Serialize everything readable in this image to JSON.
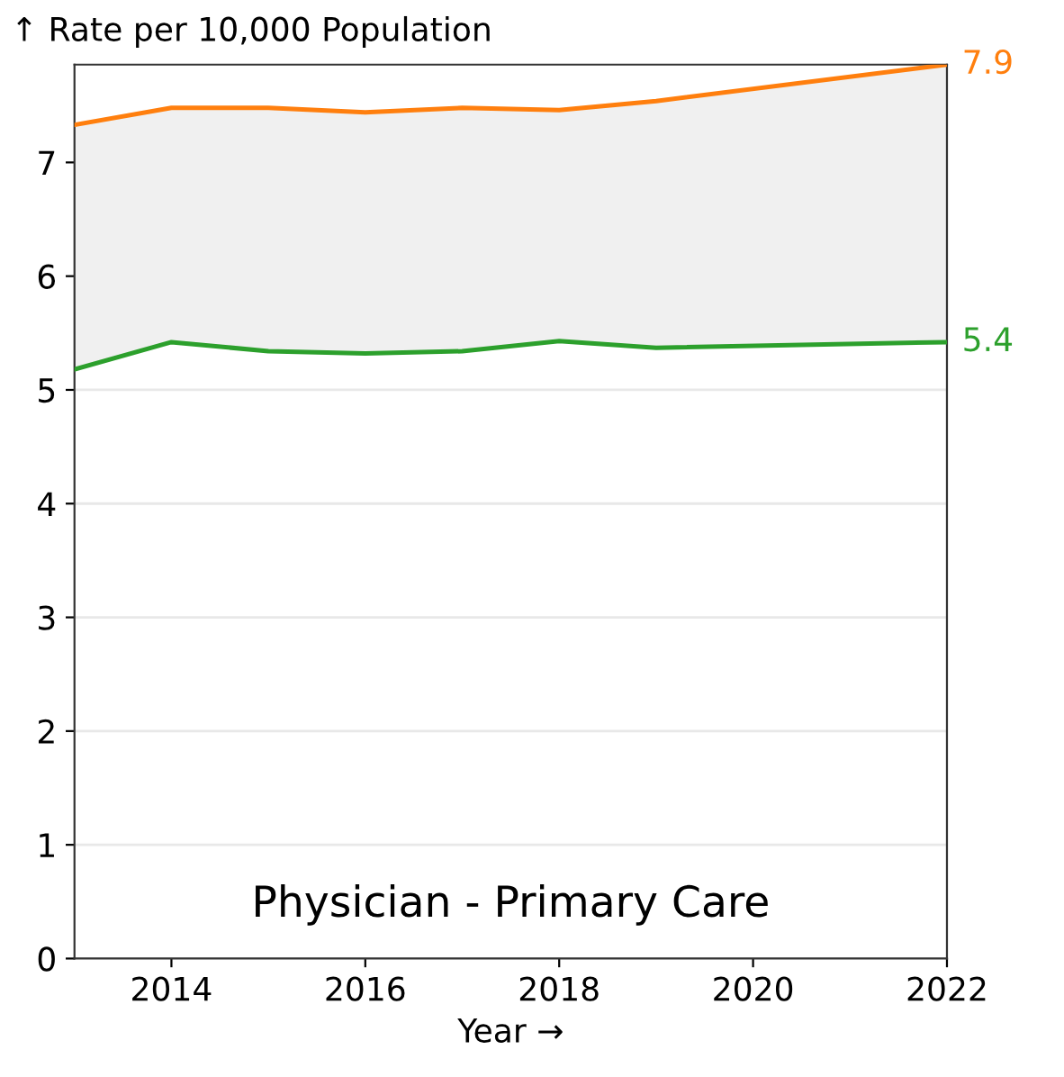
{
  "chart_data": {
    "type": "line",
    "ylabel": "↑ Rate per 10,000 Population",
    "xlabel": "Year →",
    "annotations": [
      "Physician - Primary Care"
    ],
    "x": [
      2013,
      2014,
      2015,
      2016,
      2017,
      2018,
      2019,
      2022
    ],
    "series": [
      {
        "color": "#ff7f0e",
        "values": [
          7.33,
          7.48,
          7.48,
          7.44,
          7.48,
          7.46,
          7.54,
          7.86
        ],
        "value_labels": [
          null,
          null,
          null,
          null,
          null,
          null,
          null,
          "7.9"
        ],
        "lower": [
          5.18,
          5.42,
          5.34,
          5.32,
          5.34,
          5.43,
          5.37,
          5.42
        ],
        "upper": [
          7.33,
          7.48,
          7.48,
          7.44,
          7.48,
          7.46,
          7.54,
          7.86
        ]
      },
      {
        "color": "#2ca02c",
        "values": [
          5.18,
          5.42,
          5.34,
          5.32,
          5.34,
          5.43,
          5.37,
          5.42
        ],
        "value_labels": [
          null,
          null,
          null,
          null,
          null,
          null,
          null,
          "5.4"
        ]
      }
    ],
    "xlim": [
      2013,
      2022
    ],
    "xticks": [
      {
        "value": 2014,
        "label": "2014"
      },
      {
        "value": 2016,
        "label": "2016"
      },
      {
        "value": 2018,
        "label": "2018"
      },
      {
        "value": 2020,
        "label": "2020"
      },
      {
        "value": 2022,
        "label": "2022"
      }
    ],
    "ylim": [
      0,
      7.86
    ],
    "yticks": [
      0,
      1,
      2,
      3,
      4,
      5,
      6,
      7
    ],
    "grid": "y",
    "legend": false
  }
}
